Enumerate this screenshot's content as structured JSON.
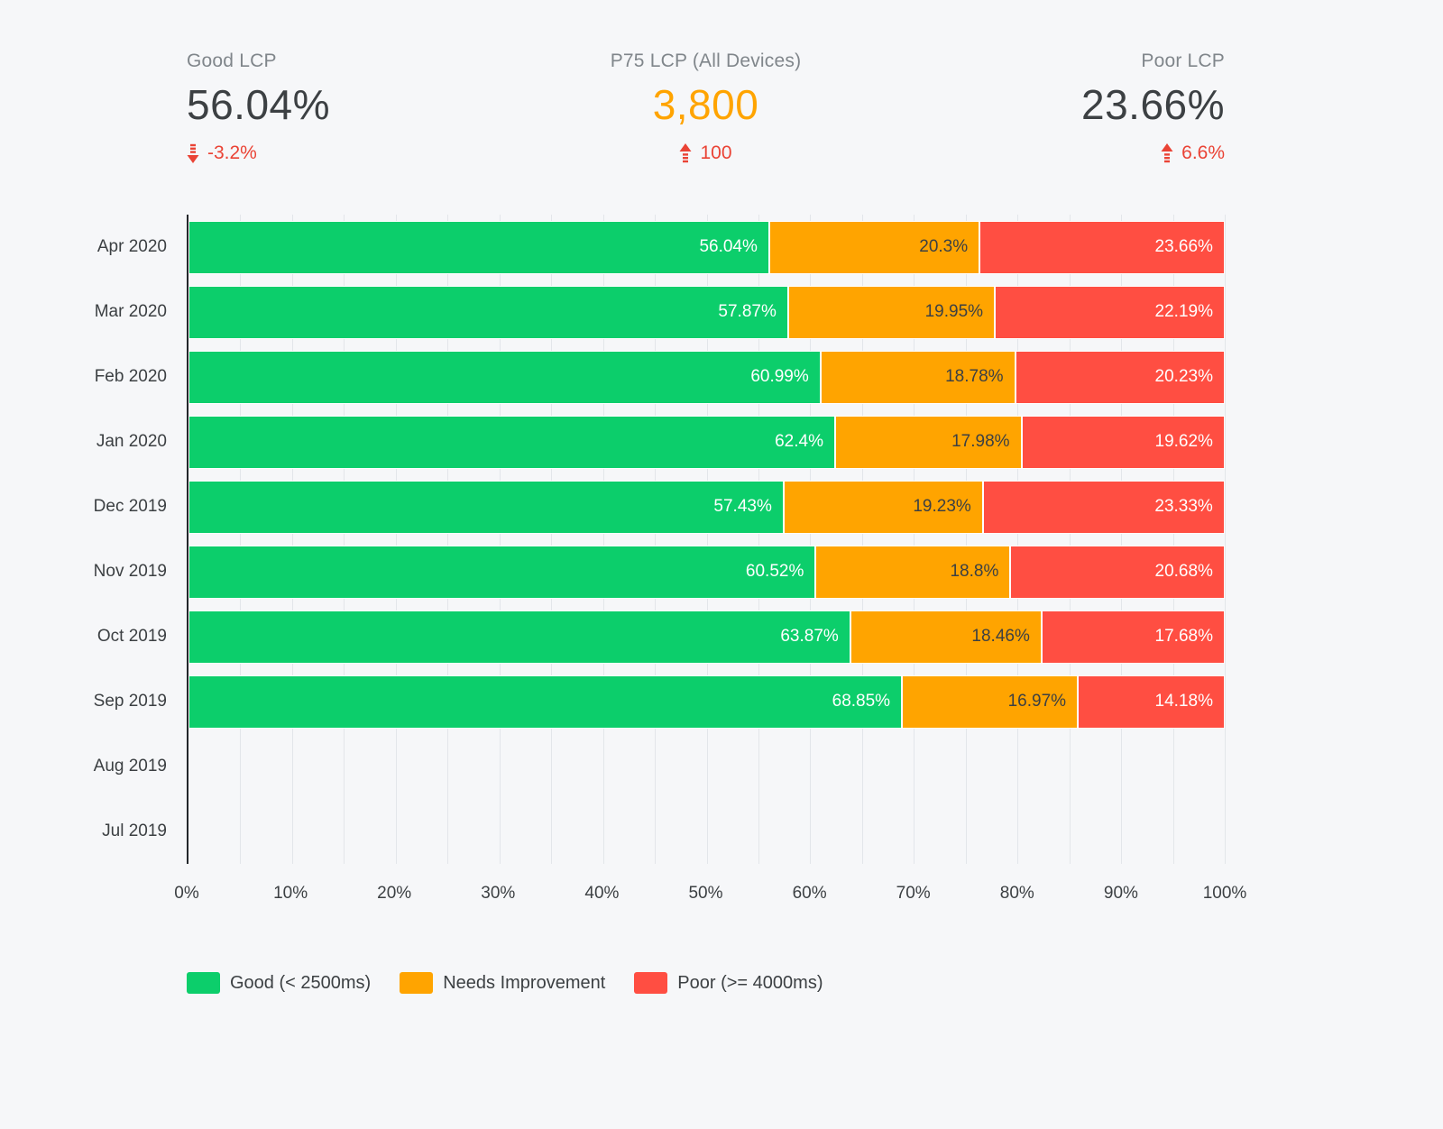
{
  "colors": {
    "background": "#f6f7f9",
    "good": "#0cce6b",
    "needs_improvement": "#ffa400",
    "poor": "#ff4e42",
    "delta_red": "#ea4335",
    "text_dark": "#3c4043",
    "text_gray": "#80868b",
    "gridline": "#e3e6ea",
    "axis_line": "#23272b"
  },
  "kpis": [
    {
      "label": "Good LCP",
      "value": "56.04%",
      "value_color": "#3c4043",
      "delta": "-3.2%",
      "direction": "down"
    },
    {
      "label": "P75 LCP (All Devices)",
      "value": "3,800",
      "value_color": "#ffa400",
      "delta": "100",
      "direction": "up"
    },
    {
      "label": "Poor LCP",
      "value": "23.66%",
      "value_color": "#3c4043",
      "delta": "6.6%",
      "direction": "up"
    }
  ],
  "chart_data": {
    "type": "bar",
    "stacked": true,
    "orientation": "horizontal",
    "categories": [
      "Apr 2020",
      "Mar 2020",
      "Feb 2020",
      "Jan 2020",
      "Dec 2019",
      "Nov 2019",
      "Oct 2019",
      "Sep 2019",
      "Aug 2019",
      "Jul 2019"
    ],
    "series": [
      {
        "key": "good",
        "name": "Good (< 2500ms)",
        "color": "#0cce6b",
        "label_color": "#ffffff",
        "values": [
          56.04,
          57.87,
          60.99,
          62.4,
          57.43,
          60.52,
          63.87,
          68.85,
          null,
          null
        ],
        "labels": [
          "56.04%",
          "57.87%",
          "60.99%",
          "62.4%",
          "57.43%",
          "60.52%",
          "63.87%",
          "68.85%",
          null,
          null
        ]
      },
      {
        "key": "needs-improvement",
        "name": "Needs Improvement",
        "color": "#ffa400",
        "label_color": "#3c4043",
        "values": [
          20.3,
          19.95,
          18.78,
          17.98,
          19.23,
          18.8,
          18.46,
          16.97,
          null,
          null
        ],
        "labels": [
          "20.3%",
          "19.95%",
          "18.78%",
          "17.98%",
          "19.23%",
          "18.8%",
          "18.46%",
          "16.97%",
          null,
          null
        ]
      },
      {
        "key": "poor",
        "name": "Poor (>= 4000ms)",
        "color": "#ff4e42",
        "label_color": "#ffffff",
        "values": [
          23.66,
          22.19,
          20.23,
          19.62,
          23.33,
          20.68,
          17.68,
          14.18,
          null,
          null
        ],
        "labels": [
          "23.66%",
          "22.19%",
          "20.23%",
          "19.62%",
          "23.33%",
          "20.68%",
          "17.68%",
          "14.18%",
          null,
          null
        ]
      }
    ],
    "xlim": [
      0,
      100
    ],
    "x_ticks": [
      "0%",
      "10%",
      "20%",
      "30%",
      "40%",
      "50%",
      "60%",
      "70%",
      "80%",
      "90%",
      "100%"
    ],
    "grid_minor_step": 5,
    "grid": true,
    "legend_position": "bottom"
  },
  "legend": [
    {
      "key": "good",
      "label": "Good (< 2500ms)",
      "color": "#0cce6b"
    },
    {
      "key": "needs-improvement",
      "label": "Needs Improvement",
      "color": "#ffa400"
    },
    {
      "key": "poor",
      "label": "Poor (>= 4000ms)",
      "color": "#ff4e42"
    }
  ]
}
